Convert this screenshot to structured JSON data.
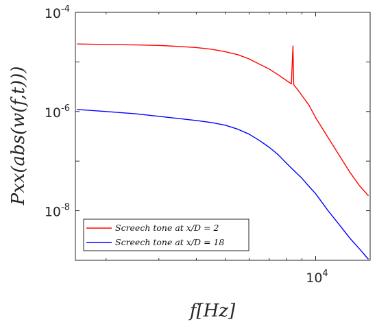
{
  "chart_data": {
    "type": "line",
    "xlabel": "f[Hz]",
    "ylabel": "Pxx(abs(w(f,t)))",
    "xscale": "log",
    "yscale": "log",
    "xlim": [
      1580,
      15200
    ],
    "ylim": [
      1e-09,
      0.0001
    ],
    "x_ticks": [
      {
        "value": 10000,
        "label_base": "10",
        "label_exp": "4"
      }
    ],
    "y_ticks": [
      {
        "value": 0.0001,
        "label_base": "10",
        "label_exp": "-4"
      },
      {
        "value": 1e-06,
        "label_base": "10",
        "label_exp": "-6"
      },
      {
        "value": 1e-08,
        "label_base": "10",
        "label_exp": "-8"
      }
    ],
    "grid": false,
    "legend_position": "bottom-left",
    "series": [
      {
        "name": "Screech tone at x/D = 2",
        "color": "#ff0000",
        "x": [
          1600,
          2000,
          2500,
          3000,
          3500,
          4000,
          4500,
          5000,
          5500,
          6000,
          6500,
          7000,
          7500,
          8000,
          8300,
          8400,
          8450,
          8500,
          8700,
          9000,
          9500,
          10000,
          11000,
          12000,
          13000,
          14000,
          15000
        ],
        "y": [
          2.3e-05,
          2.25e-05,
          2.2e-05,
          2.15e-05,
          2.05e-05,
          1.95e-05,
          1.8e-05,
          1.6e-05,
          1.4e-05,
          1.15e-05,
          9e-06,
          7.2e-06,
          5.5e-06,
          4.2e-06,
          3.6e-06,
          2.1e-05,
          3.5e-06,
          3.3e-06,
          2.8e-06,
          2.1e-06,
          1.35e-06,
          7.5e-07,
          3e-07,
          1.3e-07,
          6e-08,
          3.2e-08,
          2e-08
        ]
      },
      {
        "name": "Screech tone at x/D = 18",
        "color": "#0000ff",
        "x": [
          1600,
          2000,
          2500,
          3000,
          3500,
          4000,
          4500,
          5000,
          5500,
          6000,
          6500,
          7000,
          7500,
          8000,
          8500,
          9000,
          9500,
          10000,
          11000,
          12000,
          13000,
          14000,
          15000
        ],
        "y": [
          1.1e-06,
          1e-06,
          9e-07,
          8e-07,
          7.2e-07,
          6.6e-07,
          6e-07,
          5.3e-07,
          4.4e-07,
          3.5e-07,
          2.6e-07,
          1.9e-07,
          1.35e-07,
          9e-08,
          6.3e-08,
          4.5e-08,
          3.1e-08,
          2.2e-08,
          1e-08,
          5.2e-09,
          2.8e-09,
          1.7e-09,
          1.05e-09
        ]
      }
    ]
  }
}
